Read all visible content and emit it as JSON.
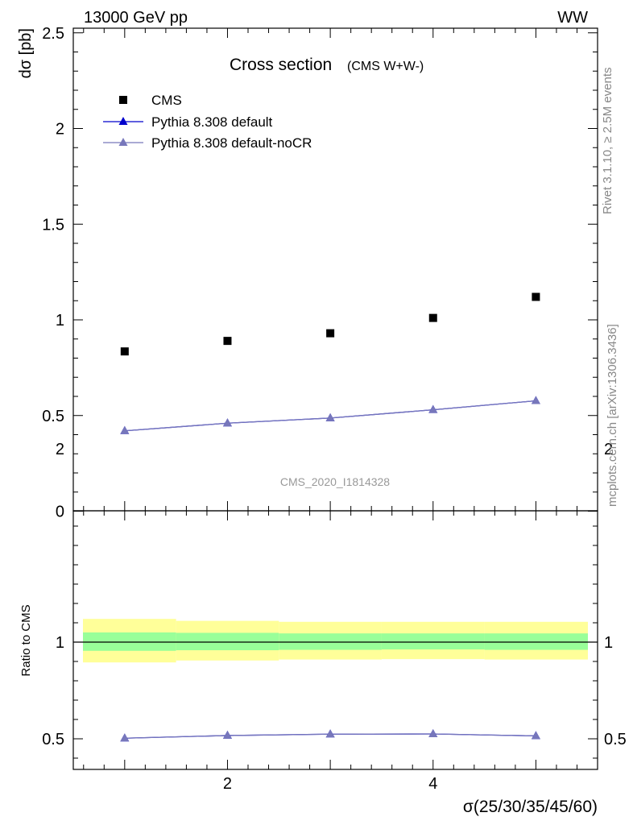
{
  "header": {
    "left": "13000 GeV pp",
    "right": "WW"
  },
  "side_labels": {
    "rivet": "Rivet 3.1.10, ≥ 2.5M events",
    "mcplots": "mcplots.cern.ch [arXiv:1306.3436]"
  },
  "chart_data": [
    {
      "type": "scatter",
      "title": "Cross section",
      "subtitle": "(CMS W+W-)",
      "ylabel": "dσ [pb]",
      "xlabel": "",
      "analysis_label": "CMS_2020_I1814328",
      "xlim": [
        0.5,
        5.6
      ],
      "ylim": [
        0,
        2.55
      ],
      "ytick_labels": [
        "0",
        "0.5",
        "1",
        "1.5",
        "2",
        "2.5"
      ],
      "legend_position": "top-left",
      "series": [
        {
          "name": "CMS",
          "marker": "square",
          "color": "#000000",
          "x": [
            1,
            2,
            3,
            4,
            5
          ],
          "y": [
            0.835,
            0.89,
            0.93,
            1.01,
            1.12
          ]
        },
        {
          "name": "Pythia 8.308 default",
          "marker": "triangle",
          "color": "#0000cc",
          "x": [
            1,
            2,
            3,
            4,
            5
          ],
          "y": [
            0.42,
            0.46,
            0.487,
            0.53,
            0.577
          ]
        },
        {
          "name": "Pythia 8.308 default-noCR",
          "marker": "triangle",
          "color": "#7777bb",
          "x": [
            1,
            2,
            3,
            4,
            5
          ],
          "y": [
            0.42,
            0.46,
            0.487,
            0.53,
            0.577
          ]
        }
      ]
    },
    {
      "type": "line",
      "ylabel": "Ratio to CMS",
      "xlabel": "σ(25/30/35/45/60)",
      "xlim": [
        0.5,
        5.6
      ],
      "ylim": [
        0.34,
        2.25
      ],
      "ytick_labels": [
        "0.5",
        "1",
        "2"
      ],
      "xtick_labels": [
        "2",
        "4"
      ],
      "bands": {
        "bin_edges": [
          0.5,
          1.5,
          2.5,
          3.5,
          4.5,
          5.5
        ],
        "stat_color": "#99ff99",
        "syst_color": "#ffff99",
        "stat_lo": [
          0.955,
          0.958,
          0.96,
          0.962,
          0.96
        ],
        "stat_hi": [
          1.05,
          1.048,
          1.045,
          1.045,
          1.045
        ],
        "total_lo": [
          0.895,
          0.905,
          0.91,
          0.912,
          0.91
        ],
        "total_hi": [
          1.12,
          1.11,
          1.105,
          1.105,
          1.105
        ]
      },
      "series": [
        {
          "name": "Pythia 8.308 default",
          "color": "#0000cc",
          "x": [
            1,
            2,
            3,
            4,
            5
          ],
          "y": [
            0.503,
            0.517,
            0.524,
            0.525,
            0.515
          ]
        },
        {
          "name": "Pythia 8.308 default-noCR",
          "color": "#7777bb",
          "x": [
            1,
            2,
            3,
            4,
            5
          ],
          "y": [
            0.503,
            0.517,
            0.524,
            0.525,
            0.515
          ]
        }
      ]
    }
  ]
}
